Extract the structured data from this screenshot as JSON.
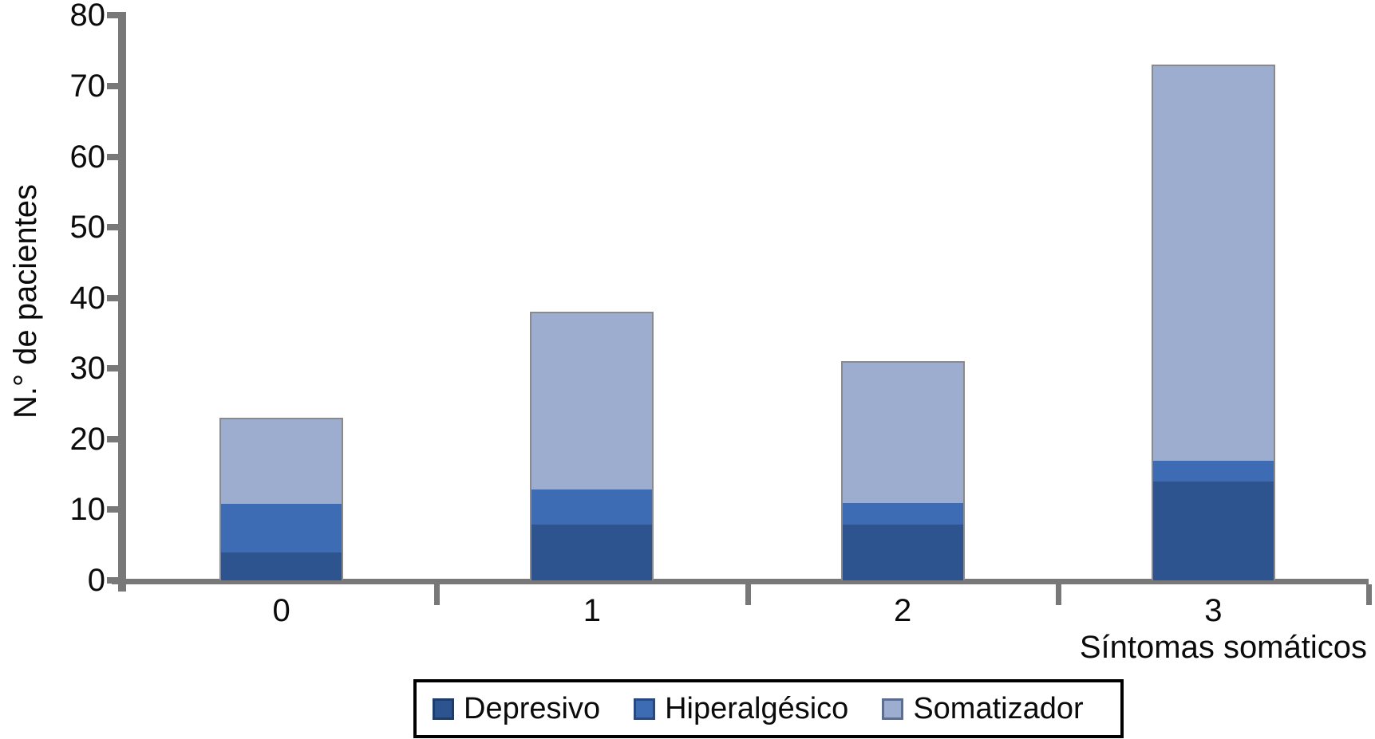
{
  "chart_data": {
    "type": "bar",
    "stacked": true,
    "categories": [
      "0",
      "1",
      "2",
      "3"
    ],
    "series": [
      {
        "name": "Depresivo",
        "color": "#2d548e",
        "values": [
          4,
          8,
          8,
          14
        ]
      },
      {
        "name": "Hiperalgésico",
        "color": "#3d6cb4",
        "values": [
          7,
          5,
          3,
          3
        ]
      },
      {
        "name": "Somatizador",
        "color": "#9dadd0",
        "values": [
          12,
          25,
          20,
          56
        ]
      }
    ],
    "totals": [
      23,
      38,
      31,
      73
    ],
    "xlabel": "Síntomas somáticos",
    "ylabel": "N.° de pacientes",
    "ylim": [
      0,
      80
    ],
    "ytick_step": 10,
    "y_tick_labels": [
      "0",
      "10",
      "20",
      "30",
      "40",
      "50",
      "60",
      "70",
      "80"
    ],
    "grid": false,
    "legend_position": "bottom",
    "axis_color": "#787878",
    "bar_outline_color": "#8a8a8a",
    "text_color": "#0b0b0b"
  }
}
